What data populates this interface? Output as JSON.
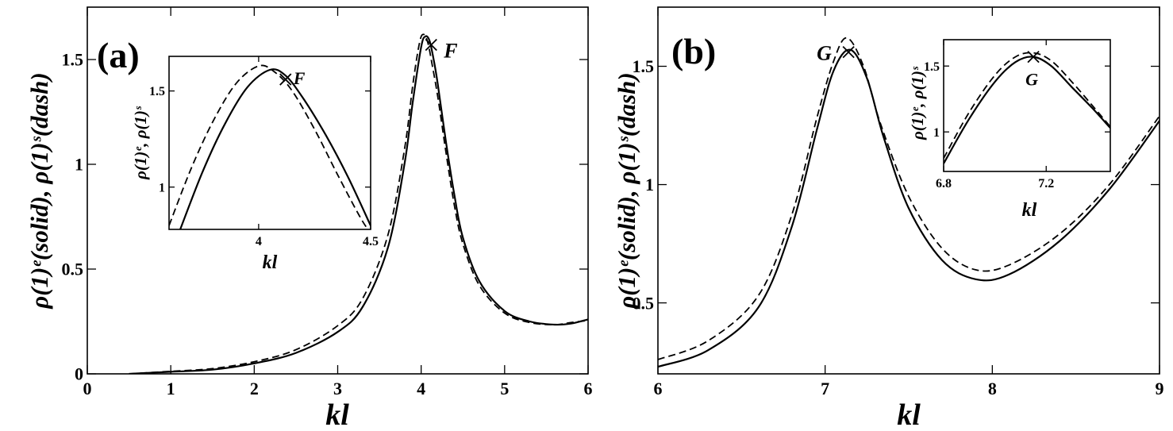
{
  "chart_data": [
    {
      "panel_label": "(a)",
      "type": "line",
      "xlabel": "kl",
      "ylabel": "ρ(1)ᵉ(solid), ρ(1)ˢ(dash)",
      "xlim": [
        0,
        6
      ],
      "ylim": [
        0,
        1.75
      ],
      "xticks": [
        0,
        1,
        2,
        3,
        4,
        5,
        6
      ],
      "yticks": [
        0,
        0.5,
        1,
        1.5
      ],
      "series": [
        {
          "style": "solid",
          "x": [
            0.5,
            1,
            1.5,
            2,
            2.5,
            3,
            3.3,
            3.6,
            3.8,
            3.9,
            4.0,
            4.05,
            4.1,
            4.15,
            4.2,
            4.3,
            4.4,
            4.5,
            4.7,
            5.0,
            5.3,
            5.6,
            5.8,
            6.0
          ],
          "y": [
            0.0,
            0.01,
            0.02,
            0.05,
            0.1,
            0.2,
            0.32,
            0.6,
            1.0,
            1.3,
            1.56,
            1.61,
            1.59,
            1.5,
            1.38,
            1.1,
            0.85,
            0.65,
            0.44,
            0.3,
            0.25,
            0.235,
            0.24,
            0.26
          ]
        },
        {
          "style": "dash",
          "x": [
            0.5,
            1,
            1.5,
            2,
            2.5,
            3,
            3.3,
            3.6,
            3.8,
            3.9,
            3.98,
            4.03,
            4.08,
            4.13,
            4.2,
            4.3,
            4.4,
            4.5,
            4.7,
            5.0,
            5.3,
            5.6,
            5.8,
            6.0
          ],
          "y": [
            0.0,
            0.012,
            0.025,
            0.058,
            0.115,
            0.23,
            0.36,
            0.66,
            1.07,
            1.38,
            1.58,
            1.62,
            1.58,
            1.48,
            1.32,
            1.05,
            0.8,
            0.62,
            0.42,
            0.29,
            0.245,
            0.235,
            0.245,
            0.255
          ]
        }
      ],
      "marker": {
        "label": "F",
        "x": 4.12,
        "y": 1.57
      },
      "inset": {
        "xlabel": "kl",
        "ylabel": "ρ(1)ᵉ, ρ(1)ˢ",
        "xlim": [
          3.6,
          4.5
        ],
        "ylim": [
          0.78,
          1.68
        ],
        "xticks": [
          4,
          4.5
        ],
        "yticks": [
          1,
          1.5
        ],
        "series": [
          {
            "style": "solid",
            "x": [
              3.65,
              3.75,
              3.85,
              3.95,
              4.05,
              4.12,
              4.2,
              4.3,
              4.4,
              4.5
            ],
            "y": [
              0.78,
              1.08,
              1.33,
              1.52,
              1.61,
              1.58,
              1.46,
              1.27,
              1.05,
              0.8
            ]
          },
          {
            "style": "dash",
            "x": [
              3.6,
              3.7,
              3.8,
              3.9,
              4.0,
              4.07,
              4.15,
              4.25,
              4.35,
              4.45,
              4.5
            ],
            "y": [
              0.8,
              1.1,
              1.35,
              1.54,
              1.63,
              1.6,
              1.5,
              1.3,
              1.07,
              0.85,
              0.76
            ]
          }
        ],
        "marker": {
          "label": "F",
          "x": 4.12,
          "y": 1.56
        }
      }
    },
    {
      "panel_label": "(b)",
      "type": "line",
      "xlabel": "kl",
      "ylabel": "ρ(1)ᵉ(solid), ρ(1)ˢ(dash)",
      "xlim": [
        6,
        9
      ],
      "ylim": [
        0.2,
        1.75
      ],
      "xticks": [
        6,
        7,
        8,
        9
      ],
      "yticks": [
        0.5,
        1,
        1.5
      ],
      "series": [
        {
          "style": "solid",
          "x": [
            6,
            6.3,
            6.6,
            6.8,
            6.95,
            7.05,
            7.15,
            7.25,
            7.35,
            7.5,
            7.7,
            7.9,
            8.1,
            8.4,
            8.7,
            9
          ],
          "y": [
            0.23,
            0.3,
            0.48,
            0.82,
            1.23,
            1.48,
            1.57,
            1.45,
            1.2,
            0.9,
            0.68,
            0.6,
            0.62,
            0.76,
            0.98,
            1.27
          ]
        },
        {
          "style": "dash",
          "x": [
            6,
            6.3,
            6.6,
            6.8,
            6.95,
            7.05,
            7.13,
            7.23,
            7.33,
            7.5,
            7.7,
            7.9,
            8.1,
            8.4,
            8.7,
            9
          ],
          "y": [
            0.26,
            0.34,
            0.53,
            0.87,
            1.28,
            1.52,
            1.62,
            1.5,
            1.26,
            0.95,
            0.73,
            0.64,
            0.66,
            0.79,
            1.0,
            1.29
          ]
        }
      ],
      "marker": {
        "label": "G",
        "x": 7.14,
        "y": 1.56
      },
      "inset": {
        "xlabel": "kl",
        "ylabel": "ρ(1)ᵉ, ρ(1)ˢ",
        "xlim": [
          6.8,
          7.45
        ],
        "ylim": [
          0.7,
          1.7
        ],
        "xticks": [
          6.8,
          7.2
        ],
        "yticks": [
          1,
          1.5
        ],
        "series": [
          {
            "style": "solid",
            "x": [
              6.8,
              6.9,
              7.0,
              7.08,
              7.15,
              7.22,
              7.3,
              7.38,
              7.45
            ],
            "y": [
              0.76,
              1.1,
              1.38,
              1.53,
              1.57,
              1.5,
              1.34,
              1.18,
              1.03
            ]
          },
          {
            "style": "dash",
            "x": [
              6.8,
              6.9,
              7.0,
              7.08,
              7.15,
              7.22,
              7.3,
              7.38,
              7.45
            ],
            "y": [
              0.8,
              1.15,
              1.43,
              1.57,
              1.6,
              1.54,
              1.38,
              1.2,
              1.04
            ]
          }
        ],
        "marker": {
          "label": "G",
          "x": 7.15,
          "y": 1.57
        }
      }
    }
  ]
}
